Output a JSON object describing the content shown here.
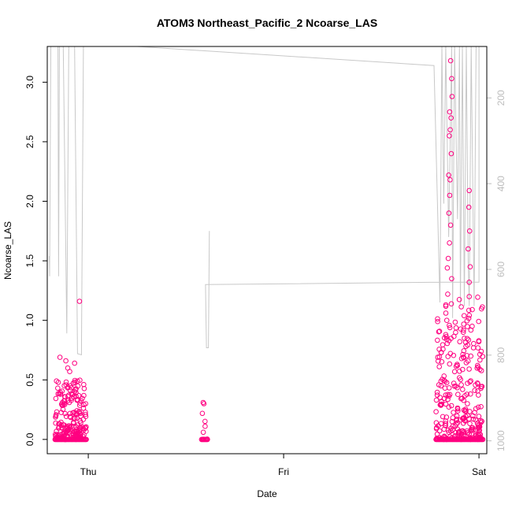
{
  "chart_data": {
    "type": "scatter",
    "title": "ATOM3 Northeast_Pacific_2 Ncoarse_LAS",
    "xlabel": "Date",
    "ylabel": "Ncoarse_LAS",
    "x_tick_labels": [
      "Thu",
      "Fri",
      "Sat"
    ],
    "y_ticks": [
      0.0,
      0.5,
      1.0,
      1.5,
      2.0,
      2.5,
      3.0
    ],
    "y_tick_labels": [
      "0.0",
      "0.5",
      "1.0",
      "1.5",
      "2.0",
      "2.5",
      "3.0"
    ],
    "ylim": [
      -0.12,
      3.3
    ],
    "xlim_days": [
      -0.21,
      2.04
    ],
    "right_axis": {
      "ticks": [
        200,
        400,
        600,
        800,
        1000
      ],
      "lim": [
        1030,
        80
      ],
      "color": "#bdbdbd"
    },
    "marker_color": "#ff0080",
    "line_color": "#c8c8c8",
    "series": [
      {
        "clusters": [
          {
            "x_range": [
              -0.17,
              -0.01
            ],
            "upper": 0.5,
            "count": 220
          },
          {
            "x_range": [
              0.58,
              0.61
            ],
            "upper": 0.32,
            "count": 5
          },
          {
            "x_range": [
              1.78,
              2.02
            ],
            "upper": 1.2,
            "count": 300
          }
        ],
        "points": [
          {
            "x": -0.145,
            "y": 0.69
          },
          {
            "x": -0.115,
            "y": 0.66
          },
          {
            "x": -0.105,
            "y": 0.6
          },
          {
            "x": -0.095,
            "y": 0.57
          },
          {
            "x": -0.07,
            "y": 0.64
          },
          {
            "x": -0.045,
            "y": 1.16
          },
          {
            "x": 0.588,
            "y": 0.31
          },
          {
            "x": 0.592,
            "y": 0.3
          },
          {
            "x": 0.598,
            "y": 0.11
          },
          {
            "x": 1.855,
            "y": 3.18
          },
          {
            "x": 1.86,
            "y": 3.03
          },
          {
            "x": 1.862,
            "y": 2.88
          },
          {
            "x": 1.85,
            "y": 2.75
          },
          {
            "x": 1.857,
            "y": 2.7
          },
          {
            "x": 1.853,
            "y": 2.6
          },
          {
            "x": 1.848,
            "y": 2.55
          },
          {
            "x": 1.858,
            "y": 2.4
          },
          {
            "x": 1.845,
            "y": 2.22
          },
          {
            "x": 1.852,
            "y": 2.18
          },
          {
            "x": 1.85,
            "y": 2.05
          },
          {
            "x": 1.846,
            "y": 1.9
          },
          {
            "x": 1.855,
            "y": 1.8
          },
          {
            "x": 1.849,
            "y": 1.65
          },
          {
            "x": 1.843,
            "y": 1.52
          },
          {
            "x": 1.838,
            "y": 1.44
          },
          {
            "x": 1.86,
            "y": 1.35
          },
          {
            "x": 1.84,
            "y": 1.22
          },
          {
            "x": 1.835,
            "y": 1.0
          },
          {
            "x": 1.83,
            "y": 0.88
          },
          {
            "x": 1.95,
            "y": 2.09
          },
          {
            "x": 1.948,
            "y": 1.95
          },
          {
            "x": 1.952,
            "y": 1.75
          },
          {
            "x": 1.945,
            "y": 1.6
          },
          {
            "x": 1.955,
            "y": 1.45
          },
          {
            "x": 1.95,
            "y": 1.32
          },
          {
            "x": 1.95,
            "y": 1.2
          },
          {
            "x": 1.92,
            "y": 0.9
          },
          {
            "x": 1.965,
            "y": 0.95
          },
          {
            "x": 1.925,
            "y": 0.85
          }
        ]
      }
    ],
    "line_series": [
      {
        "points": [
          {
            "x": -0.2,
            "y": 1.54
          },
          {
            "x": -0.198,
            "y": 1.37
          },
          {
            "x": -0.192,
            "y": 3.3
          },
          {
            "x": -0.155,
            "y": 3.3
          },
          {
            "x": -0.152,
            "y": 1.37
          },
          {
            "x": -0.148,
            "y": 3.3
          },
          {
            "x": -0.128,
            "y": 3.3
          },
          {
            "x": -0.11,
            "y": 0.89
          },
          {
            "x": -0.1,
            "y": 3.3
          },
          {
            "x": -0.07,
            "y": 3.3
          },
          {
            "x": -0.055,
            "y": 0.72
          },
          {
            "x": -0.035,
            "y": 0.71
          },
          {
            "x": -0.025,
            "y": 3.3
          },
          {
            "x": -0.01,
            "y": 3.3
          },
          {
            "x": 0.25,
            "y": 3.3
          },
          {
            "x": 1.77,
            "y": 3.14
          },
          {
            "x": 1.8,
            "y": 1.15
          },
          {
            "x": 1.81,
            "y": 3.3
          },
          {
            "x": 1.82,
            "y": 1.98
          },
          {
            "x": 1.83,
            "y": 3.3
          },
          {
            "x": 1.845,
            "y": 1.7
          },
          {
            "x": 1.86,
            "y": 3.3
          },
          {
            "x": 1.865,
            "y": 1.02
          },
          {
            "x": 1.875,
            "y": 3.3
          },
          {
            "x": 1.89,
            "y": 1.85
          },
          {
            "x": 1.9,
            "y": 3.3
          },
          {
            "x": 1.905,
            "y": 1.12
          },
          {
            "x": 1.915,
            "y": 3.3
          },
          {
            "x": 1.925,
            "y": 1.12
          },
          {
            "x": 1.935,
            "y": 3.3
          },
          {
            "x": 1.945,
            "y": 1.5
          },
          {
            "x": 1.95,
            "y": 1.12
          },
          {
            "x": 1.96,
            "y": 3.3
          },
          {
            "x": 1.975,
            "y": 1.12
          },
          {
            "x": 1.985,
            "y": 3.3
          },
          {
            "x": 2.0,
            "y": 3.3
          },
          {
            "x": 2.0,
            "y": 1.32
          },
          {
            "x": 1.8,
            "y": 1.32
          },
          {
            "x": 0.6,
            "y": 1.3
          },
          {
            "x": 0.605,
            "y": 0.77
          },
          {
            "x": 0.615,
            "y": 0.77
          },
          {
            "x": 0.62,
            "y": 1.75
          }
        ]
      }
    ]
  }
}
